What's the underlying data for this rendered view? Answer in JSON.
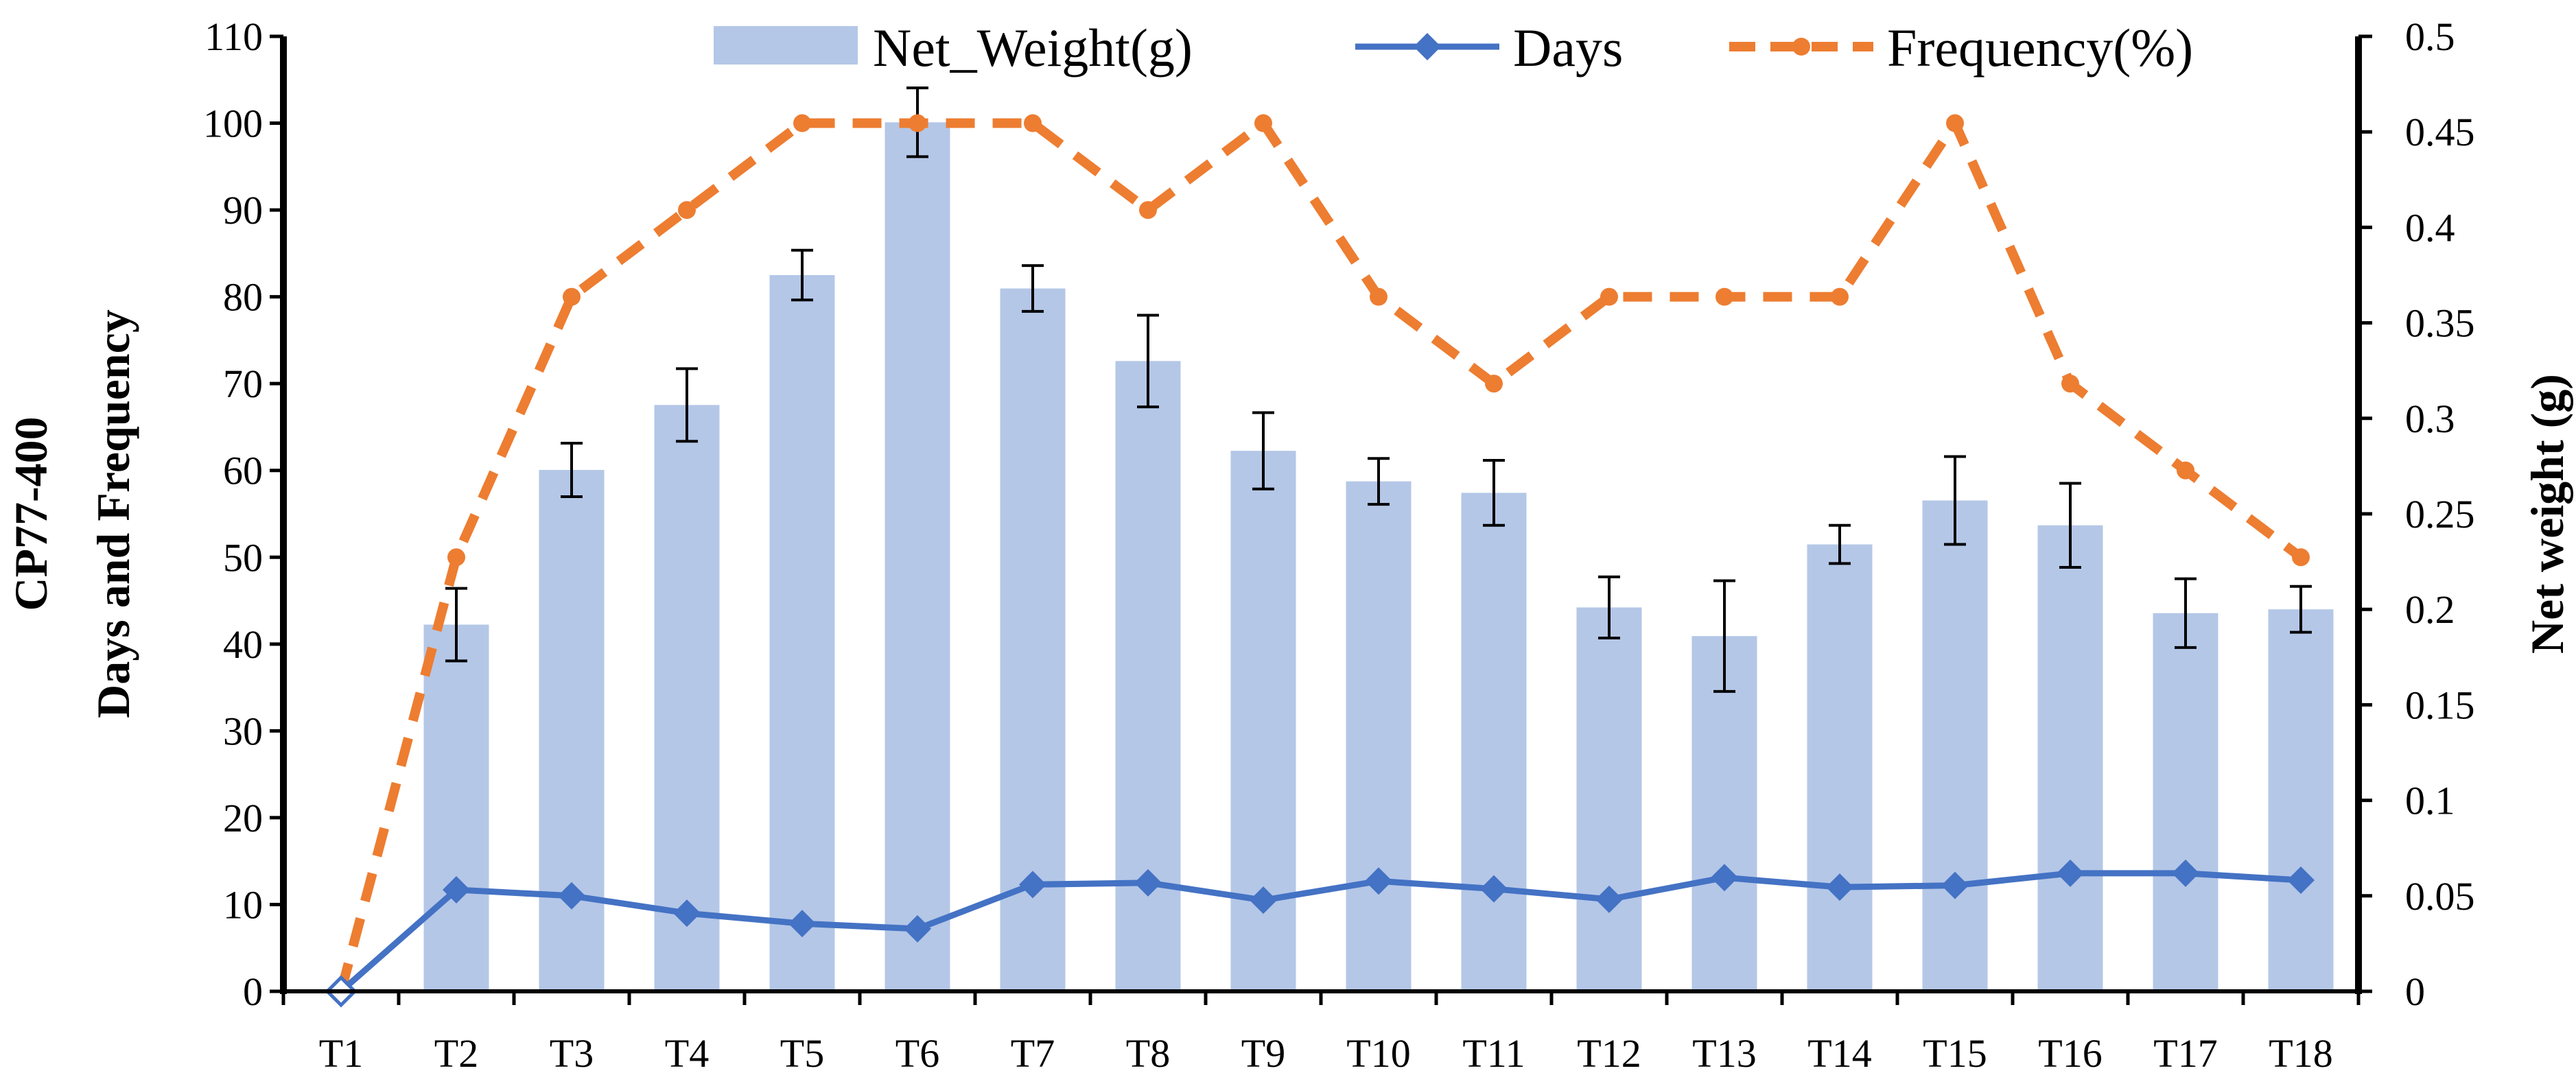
{
  "chart_data": {
    "type": "bar",
    "categories": [
      "T1",
      "T2",
      "T3",
      "T4",
      "T5",
      "T6",
      "T7",
      "T8",
      "T9",
      "T10",
      "T11",
      "T12",
      "T13",
      "T14",
      "T15",
      "T16",
      "T17",
      "T18"
    ],
    "series": [
      {
        "name": "Net_Weight(g)",
        "kind": "bar",
        "axis": "right",
        "values": [
          0,
          0.192,
          0.273,
          0.307,
          0.375,
          0.455,
          0.368,
          0.33,
          0.283,
          0.267,
          0.261,
          0.201,
          0.186,
          0.234,
          0.257,
          0.244,
          0.198,
          0.2
        ],
        "error": [
          0,
          0.019,
          0.014,
          0.019,
          0.013,
          0.018,
          0.012,
          0.024,
          0.02,
          0.012,
          0.017,
          0.016,
          0.029,
          0.01,
          0.023,
          0.022,
          0.018,
          0.012
        ],
        "color": "#b4c7e7"
      },
      {
        "name": "Days",
        "kind": "line",
        "axis": "left",
        "marker": "diamond",
        "values": [
          0,
          11.7,
          11.0,
          9.0,
          7.8,
          7.2,
          12.3,
          12.5,
          10.5,
          12.7,
          11.8,
          10.6,
          13.1,
          12.0,
          12.2,
          13.6,
          13.6,
          12.8
        ],
        "color": "#4472c4"
      },
      {
        "name": "Frequency(%)",
        "kind": "line",
        "axis": "left",
        "dash": true,
        "marker": "circle",
        "values": [
          0,
          50,
          80,
          90,
          100,
          100,
          100,
          90,
          100,
          80,
          70,
          80,
          80,
          80,
          100,
          70,
          60,
          50
        ],
        "color": "#ed7d31"
      }
    ],
    "y_left": {
      "label_lines": [
        "CP77-400",
        "Days and Frequency"
      ],
      "lim": [
        0,
        110
      ],
      "ticks": [
        "0",
        "10",
        "20",
        "30",
        "40",
        "50",
        "60",
        "70",
        "80",
        "90",
        "100",
        "110"
      ]
    },
    "y_right": {
      "label": "Net weight (g)",
      "lim": [
        0,
        0.5
      ],
      "ticks": [
        "0",
        "0.05",
        "0.1",
        "0.15",
        "0.2",
        "0.25",
        "0.3",
        "0.35",
        "0.4",
        "0.45",
        "0.5"
      ]
    },
    "legend_position": "top",
    "grid": false
  }
}
